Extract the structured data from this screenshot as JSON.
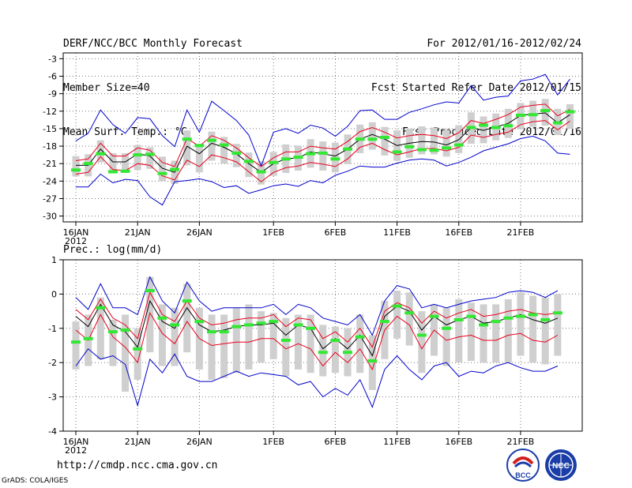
{
  "header": {
    "title": "DERF/NCC/BCC Monthly Forecast",
    "member_size": "Member Size=40",
    "variable": "Mean Surf. Temp.: °C",
    "period": "For 2012/01/16-2012/02/24",
    "started": "Fcst Started Refer Date 2012/01/15",
    "produced": "Fcst Produced Date 2012/01/16"
  },
  "footer": {
    "url": "http://cmdp.ncc.cma.gov.cn",
    "credit": "GrADS: COLA/IGES",
    "logo_bcc": "BCC",
    "logo_ncc": "NCC"
  },
  "colors": {
    "box": "#cfcfcf",
    "ensemble_mean": "#000000",
    "std_band": "#e8001c",
    "extremes": "#0000cc",
    "obs_marker": "#33e833"
  },
  "chart_data": [
    {
      "type": "box-ensemble",
      "title": "Mean Surf. Temp.: °C",
      "ylabel": "°C",
      "ylim": [
        -31,
        -2
      ],
      "yticks": [
        -30,
        -27,
        -24,
        -21,
        -18,
        -15,
        -12,
        -9,
        -6,
        -3
      ],
      "x_day_range": [
        0,
        40
      ],
      "xticks": [
        {
          "day": 0,
          "label": "16JAN",
          "sub": "2012"
        },
        {
          "day": 5,
          "label": "21JAN",
          "sub": ""
        },
        {
          "day": 10,
          "label": "26JAN",
          "sub": ""
        },
        {
          "day": 16,
          "label": "1FEB",
          "sub": ""
        },
        {
          "day": 21,
          "label": "6FEB",
          "sub": ""
        },
        {
          "day": 26,
          "label": "11FEB",
          "sub": ""
        },
        {
          "day": 31,
          "label": "16FEB",
          "sub": ""
        },
        {
          "day": 36,
          "label": "21FEB",
          "sub": ""
        }
      ],
      "mean": [
        -21.3,
        -21.3,
        -18.5,
        -20.7,
        -20.7,
        -19.3,
        -19.7,
        -21.8,
        -22.5,
        -18.0,
        -19.3,
        -17.5,
        -18.2,
        -19.3,
        -21.0,
        -22.5,
        -21.0,
        -20.2,
        -20.0,
        -19.0,
        -19.3,
        -19.7,
        -18.5,
        -16.8,
        -16.0,
        -16.8,
        -17.9,
        -17.5,
        -17.2,
        -17.3,
        -17.8,
        -16.9,
        -14.8,
        -15.3,
        -14.7,
        -14.1,
        -12.7,
        -12.5,
        -12.3,
        -14.0,
        -12.6
      ],
      "upper_std": [
        -20.5,
        -20.2,
        -17.5,
        -19.7,
        -19.7,
        -18.3,
        -18.7,
        -20.8,
        -21.5,
        -16.7,
        -18.0,
        -16.2,
        -17.0,
        -18.3,
        -20.0,
        -21.5,
        -20.0,
        -19.0,
        -19.0,
        -18.0,
        -18.3,
        -18.5,
        -17.2,
        -15.5,
        -14.8,
        -15.6,
        -16.6,
        -16.2,
        -16.0,
        -16.2,
        -16.7,
        -15.7,
        -13.6,
        -14.1,
        -13.4,
        -12.6,
        -11.3,
        -11.0,
        -10.8,
        -12.8,
        -11.7
      ],
      "lower_std": [
        -22.8,
        -22.5,
        -19.8,
        -22.0,
        -22.2,
        -21.0,
        -21.3,
        -23.1,
        -23.8,
        -20.4,
        -21.5,
        -19.5,
        -20.0,
        -20.7,
        -22.4,
        -24.1,
        -22.5,
        -21.7,
        -21.4,
        -20.8,
        -21.1,
        -21.5,
        -20.2,
        -18.2,
        -17.5,
        -18.6,
        -19.5,
        -19.0,
        -18.4,
        -18.4,
        -18.8,
        -18.2,
        -16.1,
        -16.5,
        -16.0,
        -15.6,
        -14.3,
        -13.8,
        -13.6,
        -15.2,
        -13.7
      ],
      "box_low": [
        -23.2,
        -23.2,
        -20.8,
        -22.5,
        -22.6,
        -22.1,
        -21.9,
        -24.0,
        -24.5,
        -21.3,
        -22.5,
        -20.5,
        -21.0,
        -21.6,
        -23.3,
        -24.6,
        -23.1,
        -22.6,
        -22.2,
        -21.7,
        -22.2,
        -22.5,
        -21.1,
        -19.2,
        -18.6,
        -19.6,
        -20.5,
        -20.0,
        -19.4,
        -19.4,
        -19.8,
        -19.2,
        -17.6,
        -17.5,
        -17.0,
        -16.6,
        -15.1,
        -14.7,
        -14.5,
        -16.1,
        -15.0
      ],
      "box_high": [
        -19.7,
        -19.4,
        -17.0,
        -19.2,
        -19.2,
        -17.8,
        -18.2,
        -19.8,
        -20.5,
        -15.3,
        -17.6,
        -15.5,
        -16.4,
        -17.6,
        -19.1,
        -20.6,
        -19.0,
        -17.7,
        -17.9,
        -16.8,
        -17.2,
        -17.4,
        -16.0,
        -14.3,
        -13.9,
        -14.7,
        -15.3,
        -15.0,
        -14.6,
        -14.8,
        -15.2,
        -14.4,
        -12.2,
        -12.9,
        -12.4,
        -11.6,
        -10.6,
        -10.2,
        -9.9,
        -11.6,
        -10.8
      ],
      "max": [
        -17.1,
        -15.8,
        -11.8,
        -14.3,
        -15.8,
        -13.1,
        -13.3,
        -16.2,
        -18.1,
        -11.8,
        -15.6,
        -10.3,
        -11.9,
        -13.6,
        -16.1,
        -21.4,
        -15.6,
        -15.0,
        -15.8,
        -14.4,
        -14.9,
        -16.3,
        -14.6,
        -11.9,
        -11.8,
        -13.4,
        -13.4,
        -12.2,
        -11.6,
        -10.9,
        -10.4,
        -10.6,
        -7.6,
        -10.1,
        -9.6,
        -9.4,
        -6.8,
        -6.5,
        -5.7,
        -9.2,
        -6.5
      ],
      "min": [
        -25.0,
        -25.0,
        -22.8,
        -24.3,
        -23.7,
        -23.9,
        -26.7,
        -28.1,
        -24.1,
        -23.9,
        -23.6,
        -24.1,
        -25.1,
        -24.8,
        -26.1,
        -25.5,
        -24.8,
        -24.5,
        -24.9,
        -23.9,
        -24.3,
        -23.0,
        -22.3,
        -21.4,
        -21.6,
        -21.6,
        -20.9,
        -20.4,
        -20.2,
        -20.4,
        -21.4,
        -20.8,
        -19.9,
        -18.8,
        -18.2,
        -17.6,
        -16.7,
        -16.3,
        -17.1,
        -19.2,
        -19.4
      ],
      "observed": [
        -22.1,
        -21.0,
        -19.3,
        -22.4,
        -22.3,
        -19.5,
        -19.4,
        -22.7,
        -22.0,
        -16.8,
        -17.9,
        -17.0,
        -17.8,
        -19.2,
        -20.6,
        -22.4,
        -20.8,
        -20.2,
        -19.9,
        -19.3,
        -19.2,
        -20.2,
        -18.5,
        -16.8,
        -16.8,
        -16.5,
        -19.0,
        -18.1,
        -18.6,
        -18.7,
        -18.3,
        -17.8,
        -14.8,
        -14.4,
        -14.8,
        -14.5,
        -12.7,
        -12.6,
        -11.9,
        -14.0,
        -12.1
      ]
    },
    {
      "type": "box-ensemble",
      "title": "Prec.: log(mm/d)",
      "ylabel": "log(mm/d)",
      "ylim": [
        -4,
        1
      ],
      "yticks": [
        -4,
        -3,
        -2,
        -1,
        0,
        1
      ],
      "x_day_range": [
        0,
        40
      ],
      "xticks": [
        {
          "day": 0,
          "label": "16JAN",
          "sub": "2012"
        },
        {
          "day": 5,
          "label": "21JAN",
          "sub": ""
        },
        {
          "day": 10,
          "label": "26JAN",
          "sub": ""
        },
        {
          "day": 16,
          "label": "1FEB",
          "sub": ""
        },
        {
          "day": 21,
          "label": "6FEB",
          "sub": ""
        },
        {
          "day": 26,
          "label": "11FEB",
          "sub": ""
        },
        {
          "day": 31,
          "label": "16FEB",
          "sub": ""
        },
        {
          "day": 36,
          "label": "21FEB",
          "sub": ""
        }
      ],
      "mean": [
        -0.65,
        -0.95,
        -0.3,
        -0.9,
        -1.1,
        -1.55,
        -0.2,
        -0.8,
        -1.0,
        -0.4,
        -0.9,
        -1.1,
        -1.05,
        -0.95,
        -0.9,
        -0.9,
        -0.85,
        -1.2,
        -0.9,
        -1.0,
        -1.6,
        -1.3,
        -1.6,
        -1.2,
        -1.8,
        -0.65,
        -0.35,
        -0.5,
        -1.05,
        -0.65,
        -0.9,
        -0.75,
        -0.65,
        -0.85,
        -0.8,
        -0.7,
        -0.6,
        -0.75,
        -0.85,
        -0.7
      ],
      "upper_std": [
        -0.45,
        -0.75,
        -0.15,
        -0.7,
        -0.9,
        -1.3,
        0.05,
        -0.6,
        -0.8,
        -0.2,
        -0.7,
        -0.9,
        -0.85,
        -0.75,
        -0.7,
        -0.7,
        -0.6,
        -0.95,
        -0.7,
        -0.75,
        -1.3,
        -1.1,
        -1.4,
        -1.0,
        -1.55,
        -0.5,
        -0.25,
        -0.4,
        -0.85,
        -0.5,
        -0.7,
        -0.55,
        -0.45,
        -0.65,
        -0.6,
        -0.5,
        -0.45,
        -0.55,
        -0.6,
        -0.55
      ],
      "lower_std": [
        -1.05,
        -1.35,
        -0.6,
        -1.25,
        -1.55,
        -2.0,
        -0.55,
        -1.15,
        -1.45,
        -0.8,
        -1.3,
        -1.5,
        -1.45,
        -1.4,
        -1.4,
        -1.3,
        -1.3,
        -1.6,
        -1.45,
        -1.6,
        -2.1,
        -1.7,
        -2.0,
        -1.6,
        -2.2,
        -1.05,
        -0.65,
        -0.9,
        -1.6,
        -1.05,
        -1.35,
        -1.25,
        -1.2,
        -1.35,
        -1.35,
        -1.2,
        -1.15,
        -1.35,
        -1.4,
        -1.2
      ],
      "box_low": [
        -2.2,
        -2.1,
        -1.9,
        -2.1,
        -2.85,
        -2.5,
        -1.7,
        -2.1,
        -2.1,
        -1.7,
        -2.2,
        -2.5,
        -2.45,
        -2.3,
        -2.2,
        -2.0,
        -1.9,
        -2.4,
        -2.2,
        -2.3,
        -2.4,
        -2.3,
        -2.4,
        -2.3,
        -2.8,
        -1.9,
        -1.3,
        -1.5,
        -2.3,
        -1.8,
        -2.1,
        -2.0,
        -1.95,
        -2.0,
        -2.0,
        -2.0,
        -1.8,
        -2.0,
        -2.05,
        -1.8
      ],
      "box_high": [
        -0.8,
        -0.6,
        -0.1,
        -0.75,
        -0.6,
        -1.0,
        0.5,
        -0.3,
        -0.4,
        0.3,
        -0.4,
        -0.6,
        -0.6,
        -0.4,
        -0.3,
        -0.5,
        -0.55,
        -0.7,
        -0.6,
        -0.6,
        -0.9,
        -0.95,
        -1.0,
        -0.6,
        -1.2,
        -0.2,
        0.1,
        0.05,
        -0.5,
        -0.3,
        -0.4,
        -0.15,
        -0.25,
        -0.3,
        -0.3,
        -0.15,
        0.05,
        -0.05,
        -0.1,
        0.0
      ],
      "max": [
        -0.1,
        -0.45,
        0.3,
        -0.4,
        -0.4,
        -0.6,
        0.5,
        -0.2,
        -0.55,
        0.35,
        -0.2,
        -0.5,
        -0.4,
        -0.4,
        -0.4,
        -0.4,
        -0.3,
        -0.6,
        -0.3,
        -0.4,
        -0.7,
        -0.8,
        -0.9,
        -0.6,
        -1.2,
        -0.2,
        0.25,
        0.15,
        -0.4,
        -0.3,
        -0.4,
        -0.3,
        -0.2,
        -0.15,
        -0.1,
        0.05,
        0.1,
        0.05,
        -0.1,
        0.1
      ],
      "min": [
        -2.1,
        -1.6,
        -1.9,
        -1.8,
        -2.05,
        -3.25,
        -1.9,
        -2.3,
        -1.75,
        -2.4,
        -2.55,
        -2.55,
        -2.4,
        -2.25,
        -2.4,
        -2.3,
        -2.35,
        -2.4,
        -2.65,
        -2.55,
        -3.0,
        -2.75,
        -2.95,
        -2.5,
        -3.3,
        -2.2,
        -1.8,
        -2.2,
        -2.5,
        -2.1,
        -2.0,
        -2.4,
        -2.25,
        -2.3,
        -2.1,
        -2.0,
        -2.15,
        -2.25,
        -2.25,
        -2.1
      ],
      "observed": [
        -1.4,
        -1.3,
        -0.4,
        -1.1,
        -1.05,
        -1.6,
        0.1,
        -0.7,
        -0.9,
        -0.2,
        -0.8,
        -1.1,
        -1.1,
        -0.95,
        -0.9,
        -0.85,
        -0.8,
        -1.35,
        -0.9,
        -1.0,
        -1.7,
        -1.35,
        -1.7,
        -1.25,
        -1.95,
        -0.8,
        -0.35,
        -0.55,
        -1.2,
        -0.65,
        -1.0,
        -0.75,
        -0.65,
        -0.9,
        -0.8,
        -0.7,
        -0.65,
        -0.6,
        -0.75,
        -0.55
      ]
    }
  ]
}
